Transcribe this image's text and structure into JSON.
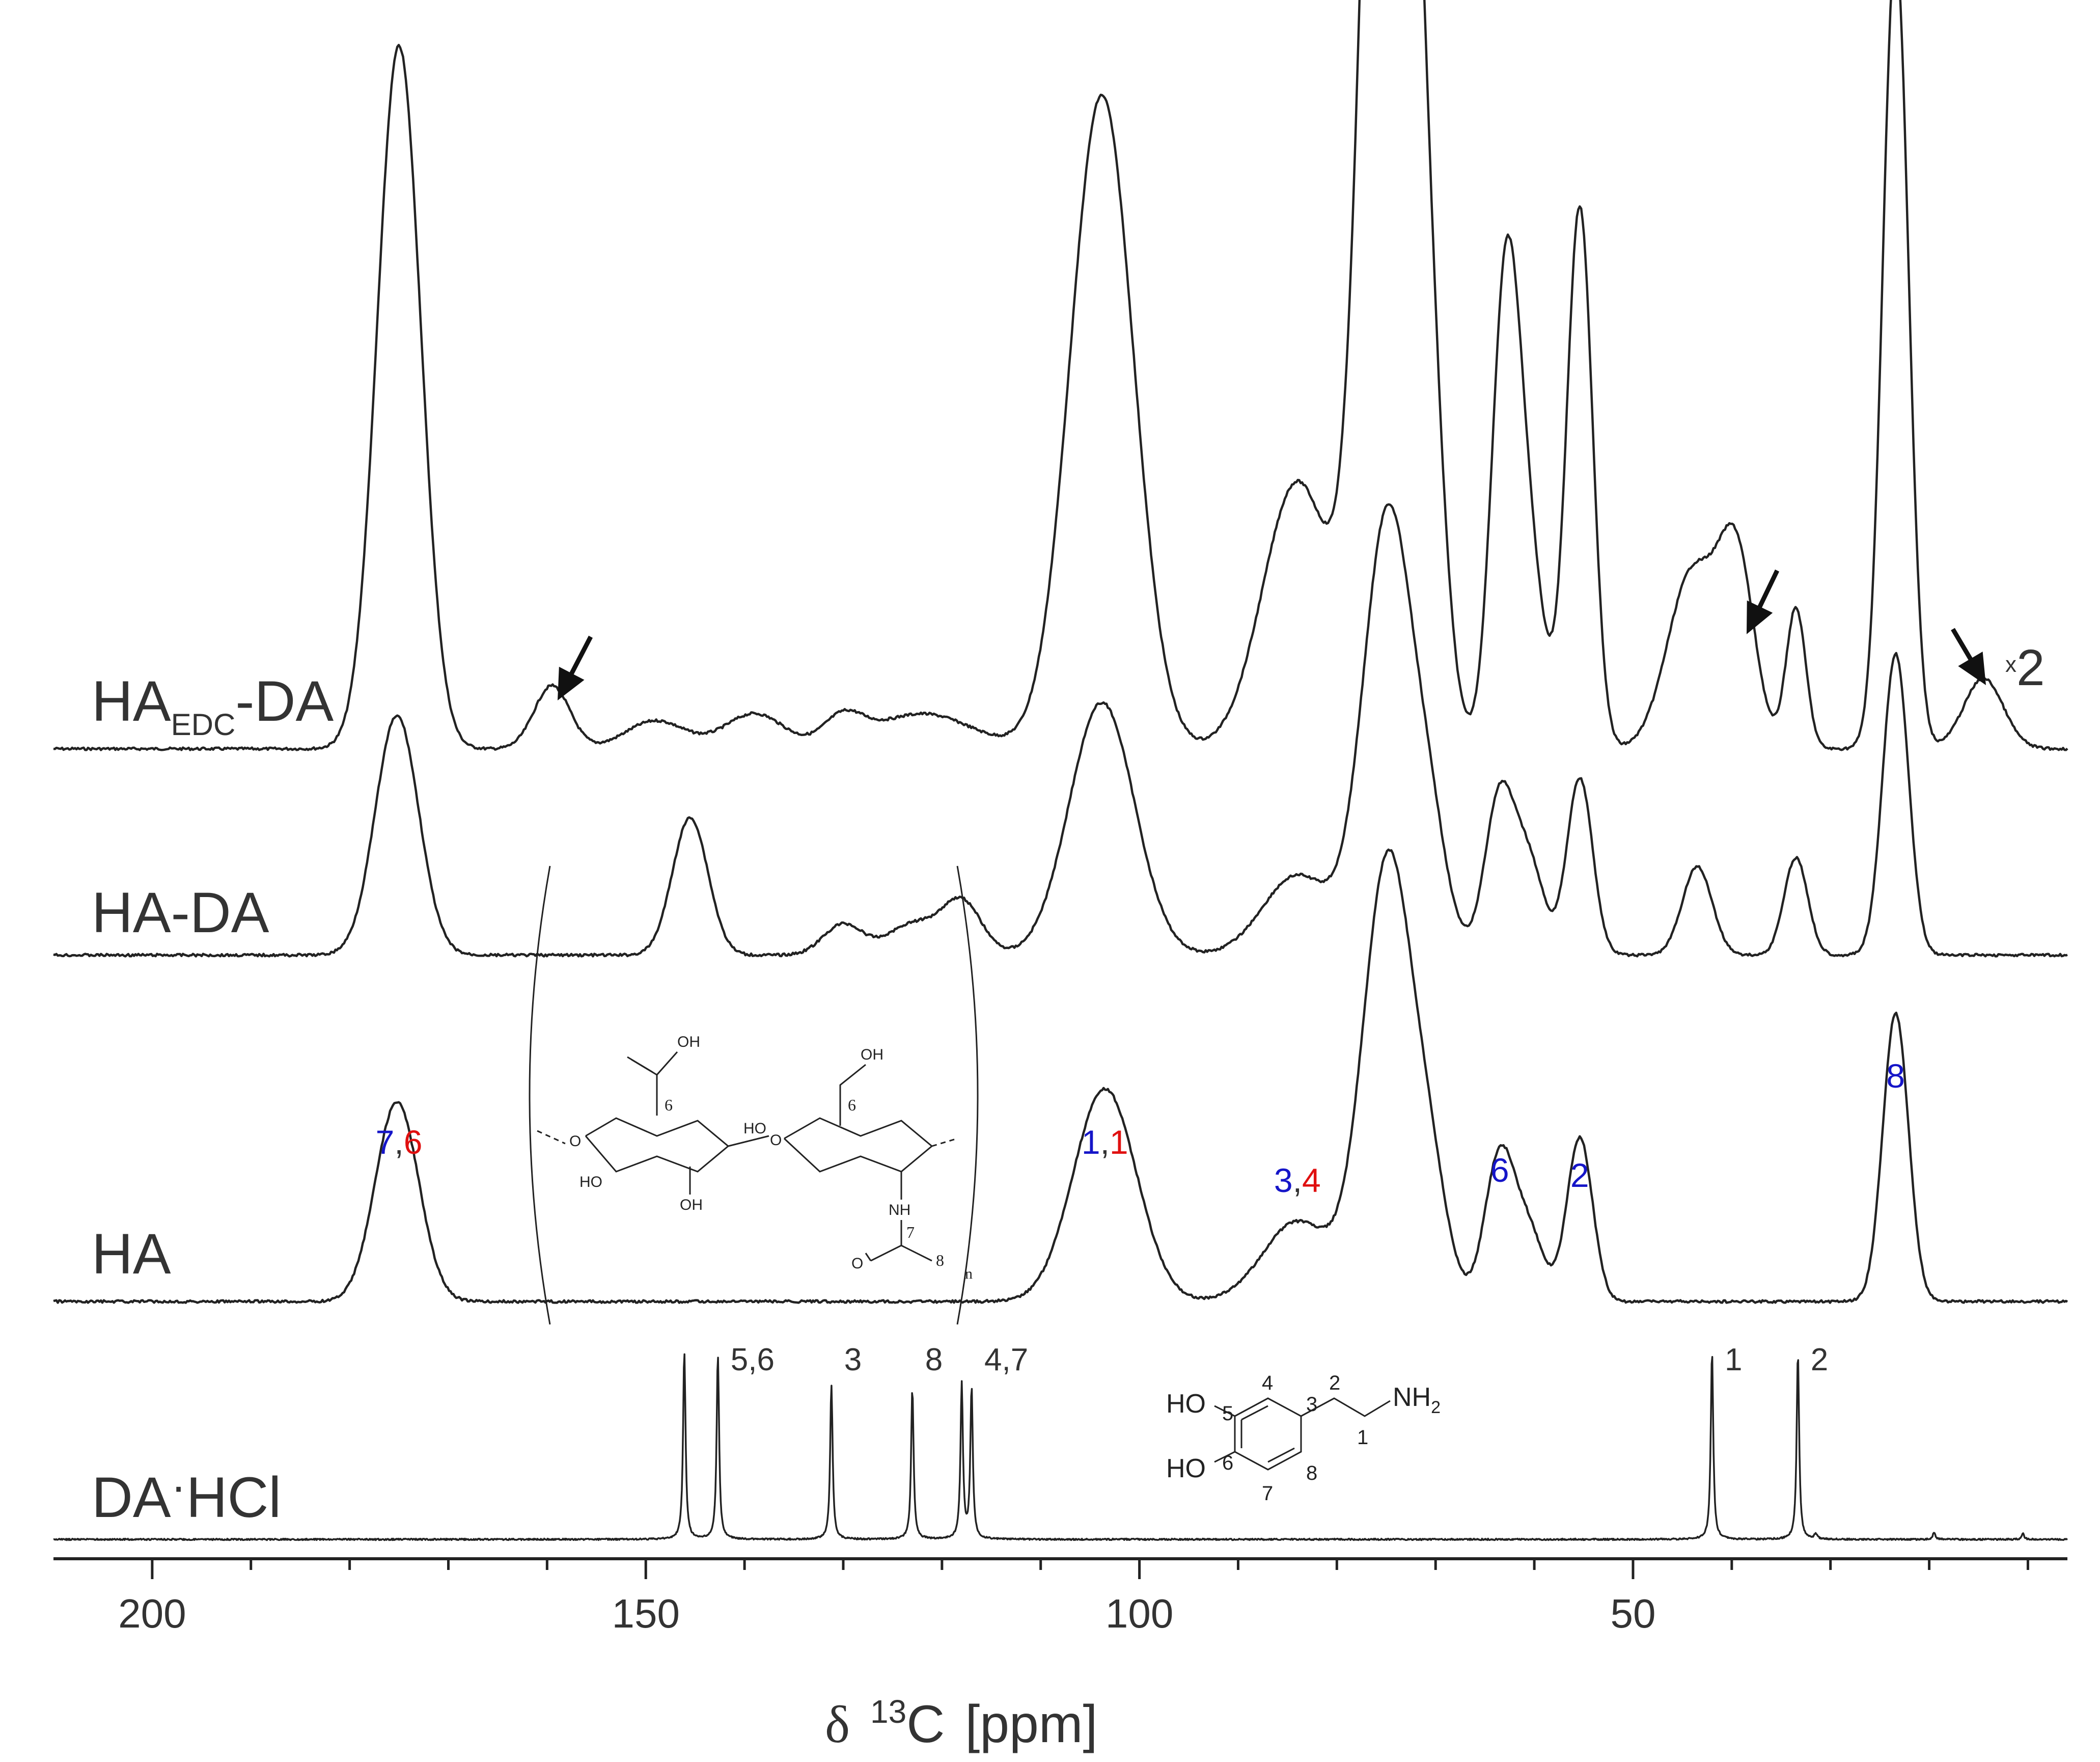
{
  "chart_data": {
    "type": "line",
    "title": "",
    "xlabel_parts": {
      "delta": "δ",
      "sup": "13",
      "nucleus": "C",
      "unit": "[ppm]"
    },
    "x_axis": {
      "range": [
        210,
        6
      ],
      "reversed": true,
      "ticks": [
        200,
        150,
        100,
        50
      ],
      "tick_labels": [
        "200",
        "150",
        "100",
        "50"
      ]
    },
    "series": [
      {
        "name": "HA_EDC-DA",
        "label": {
          "main": "HA",
          "sub": "EDC",
          "tail": "-DA"
        },
        "scale_note": {
          "x": "x",
          "n": "2"
        },
        "peaks": [
          [
            175.0,
            1.0,
            2.2
          ],
          [
            159.5,
            0.09,
            1.8
          ],
          [
            149,
            0.04,
            3
          ],
          [
            139,
            0.05,
            3
          ],
          [
            130,
            0.04,
            2
          ],
          [
            122,
            0.05,
            5
          ],
          [
            103.8,
            0.93,
            3.2
          ],
          [
            84,
            0.38,
            3.5
          ],
          [
            74.8,
            2.2,
            2.3
          ],
          [
            71,
            0.45,
            1.8
          ],
          [
            63,
            0.55,
            1.4
          ],
          [
            61,
            0.3,
            1.8
          ],
          [
            55.4,
            0.77,
            1.3
          ],
          [
            44,
            0.25,
            2.5
          ],
          [
            39.5,
            0.26,
            1.8
          ],
          [
            33.5,
            0.2,
            1.0
          ],
          [
            23.4,
            1.14,
            1.3
          ],
          [
            14.5,
            0.1,
            2.0
          ]
        ]
      },
      {
        "name": "HA-DA",
        "label": {
          "main": "HA-DA"
        },
        "peaks": [
          [
            175.2,
            0.54,
            2.2
          ],
          [
            145.5,
            0.31,
            1.8
          ],
          [
            130,
            0.07,
            2
          ],
          [
            123,
            0.07,
            2.5
          ],
          [
            118,
            0.12,
            2
          ],
          [
            103.8,
            0.57,
            3.3
          ],
          [
            84,
            0.18,
            3.5
          ],
          [
            74.8,
            1.0,
            2.5
          ],
          [
            70.5,
            0.22,
            1.8
          ],
          [
            63.5,
            0.36,
            1.5
          ],
          [
            60.5,
            0.2,
            1.5
          ],
          [
            55.4,
            0.4,
            1.3
          ],
          [
            43.5,
            0.2,
            1.5
          ],
          [
            33.5,
            0.22,
            1.2
          ],
          [
            23.4,
            0.68,
            1.3
          ]
        ]
      },
      {
        "name": "HA",
        "label": {
          "main": "HA"
        },
        "peaks": [
          [
            175.2,
            0.45,
            2.2
          ],
          [
            103.5,
            0.48,
            3.2
          ],
          [
            84,
            0.18,
            3.5
          ],
          [
            74.8,
            1.0,
            2.5
          ],
          [
            70.5,
            0.22,
            1.8
          ],
          [
            63.5,
            0.33,
            1.5
          ],
          [
            60.5,
            0.15,
            1.5
          ],
          [
            55.4,
            0.37,
            1.3
          ],
          [
            23.4,
            0.65,
            1.3
          ]
        ]
      },
      {
        "name": "DA·HCl",
        "label": {
          "main": "DA",
          "dot": "·",
          "tail": "HCl"
        },
        "peaks": [
          [
            146.1,
            1.0,
            0.15
          ],
          [
            142.7,
            0.98,
            0.15
          ],
          [
            131.2,
            0.82,
            0.15
          ],
          [
            123.0,
            0.8,
            0.15
          ],
          [
            118.0,
            0.82,
            0.15
          ],
          [
            117.0,
            0.8,
            0.15
          ],
          [
            42.0,
            1.0,
            0.15
          ],
          [
            33.3,
            0.99,
            0.15
          ],
          [
            31.5,
            0.03,
            0.15
          ],
          [
            19.5,
            0.04,
            0.15
          ],
          [
            10.5,
            0.03,
            0.15
          ]
        ]
      }
    ],
    "annotations": {
      "arrows": [
        "arrow-159",
        "arrow-40",
        "arrow-15"
      ],
      "ha_peaks": [
        {
          "parts": [
            {
              "t": "7",
              "c": "blue"
            },
            {
              "t": ",",
              "c": "black"
            },
            {
              "t": "6",
              "c": "red"
            }
          ],
          "ppm": 175
        },
        {
          "parts": [
            {
              "t": "1",
              "c": "blue"
            },
            {
              "t": ",",
              "c": "black"
            },
            {
              "t": "1",
              "c": "red"
            }
          ],
          "ppm": 103.5
        },
        {
          "parts": [
            {
              "t": "3",
              "c": "blue"
            },
            {
              "t": ",",
              "c": "black"
            },
            {
              "t": "4",
              "c": "red"
            }
          ],
          "ppm": 84
        },
        {
          "parts": [
            {
              "t": "6",
              "c": "blue"
            }
          ],
          "ppm": 63.5
        },
        {
          "parts": [
            {
              "t": "2",
              "c": "blue"
            }
          ],
          "ppm": 55.4
        },
        {
          "parts": [
            {
              "t": "8",
              "c": "blue"
            }
          ],
          "ppm": 23.4
        }
      ],
      "da_peaks": [
        {
          "text": "5,6",
          "ppm": 142.7
        },
        {
          "text": "3",
          "ppm": 131.2
        },
        {
          "text": "8",
          "ppm": 123.0
        },
        {
          "text": "4,7",
          "ppm": 117.0
        },
        {
          "text": "1",
          "ppm": 42.0
        },
        {
          "text": "2",
          "ppm": 33.3
        }
      ]
    },
    "ha_structure": {
      "oh_top1": "OH",
      "oh_top2": "OH",
      "c6_red": "6",
      "c6_blue": "6",
      "o_left": "O",
      "ho_mid": "HO",
      "o_mid": "O",
      "oh_bot1": "OH",
      "ho_bot": "HO",
      "nh": "NH",
      "c7": "7",
      "c8": "8",
      "o_bot": "O",
      "n_sub": "n"
    },
    "da_structure": {
      "ho1": "HO",
      "ho2": "HO",
      "n5": "5",
      "n4": "4",
      "n3": "3",
      "n2": "2",
      "n1": "1",
      "n6": "6",
      "n7": "7",
      "n8": "8",
      "nh": "NH",
      "nh_sub": "2"
    }
  }
}
